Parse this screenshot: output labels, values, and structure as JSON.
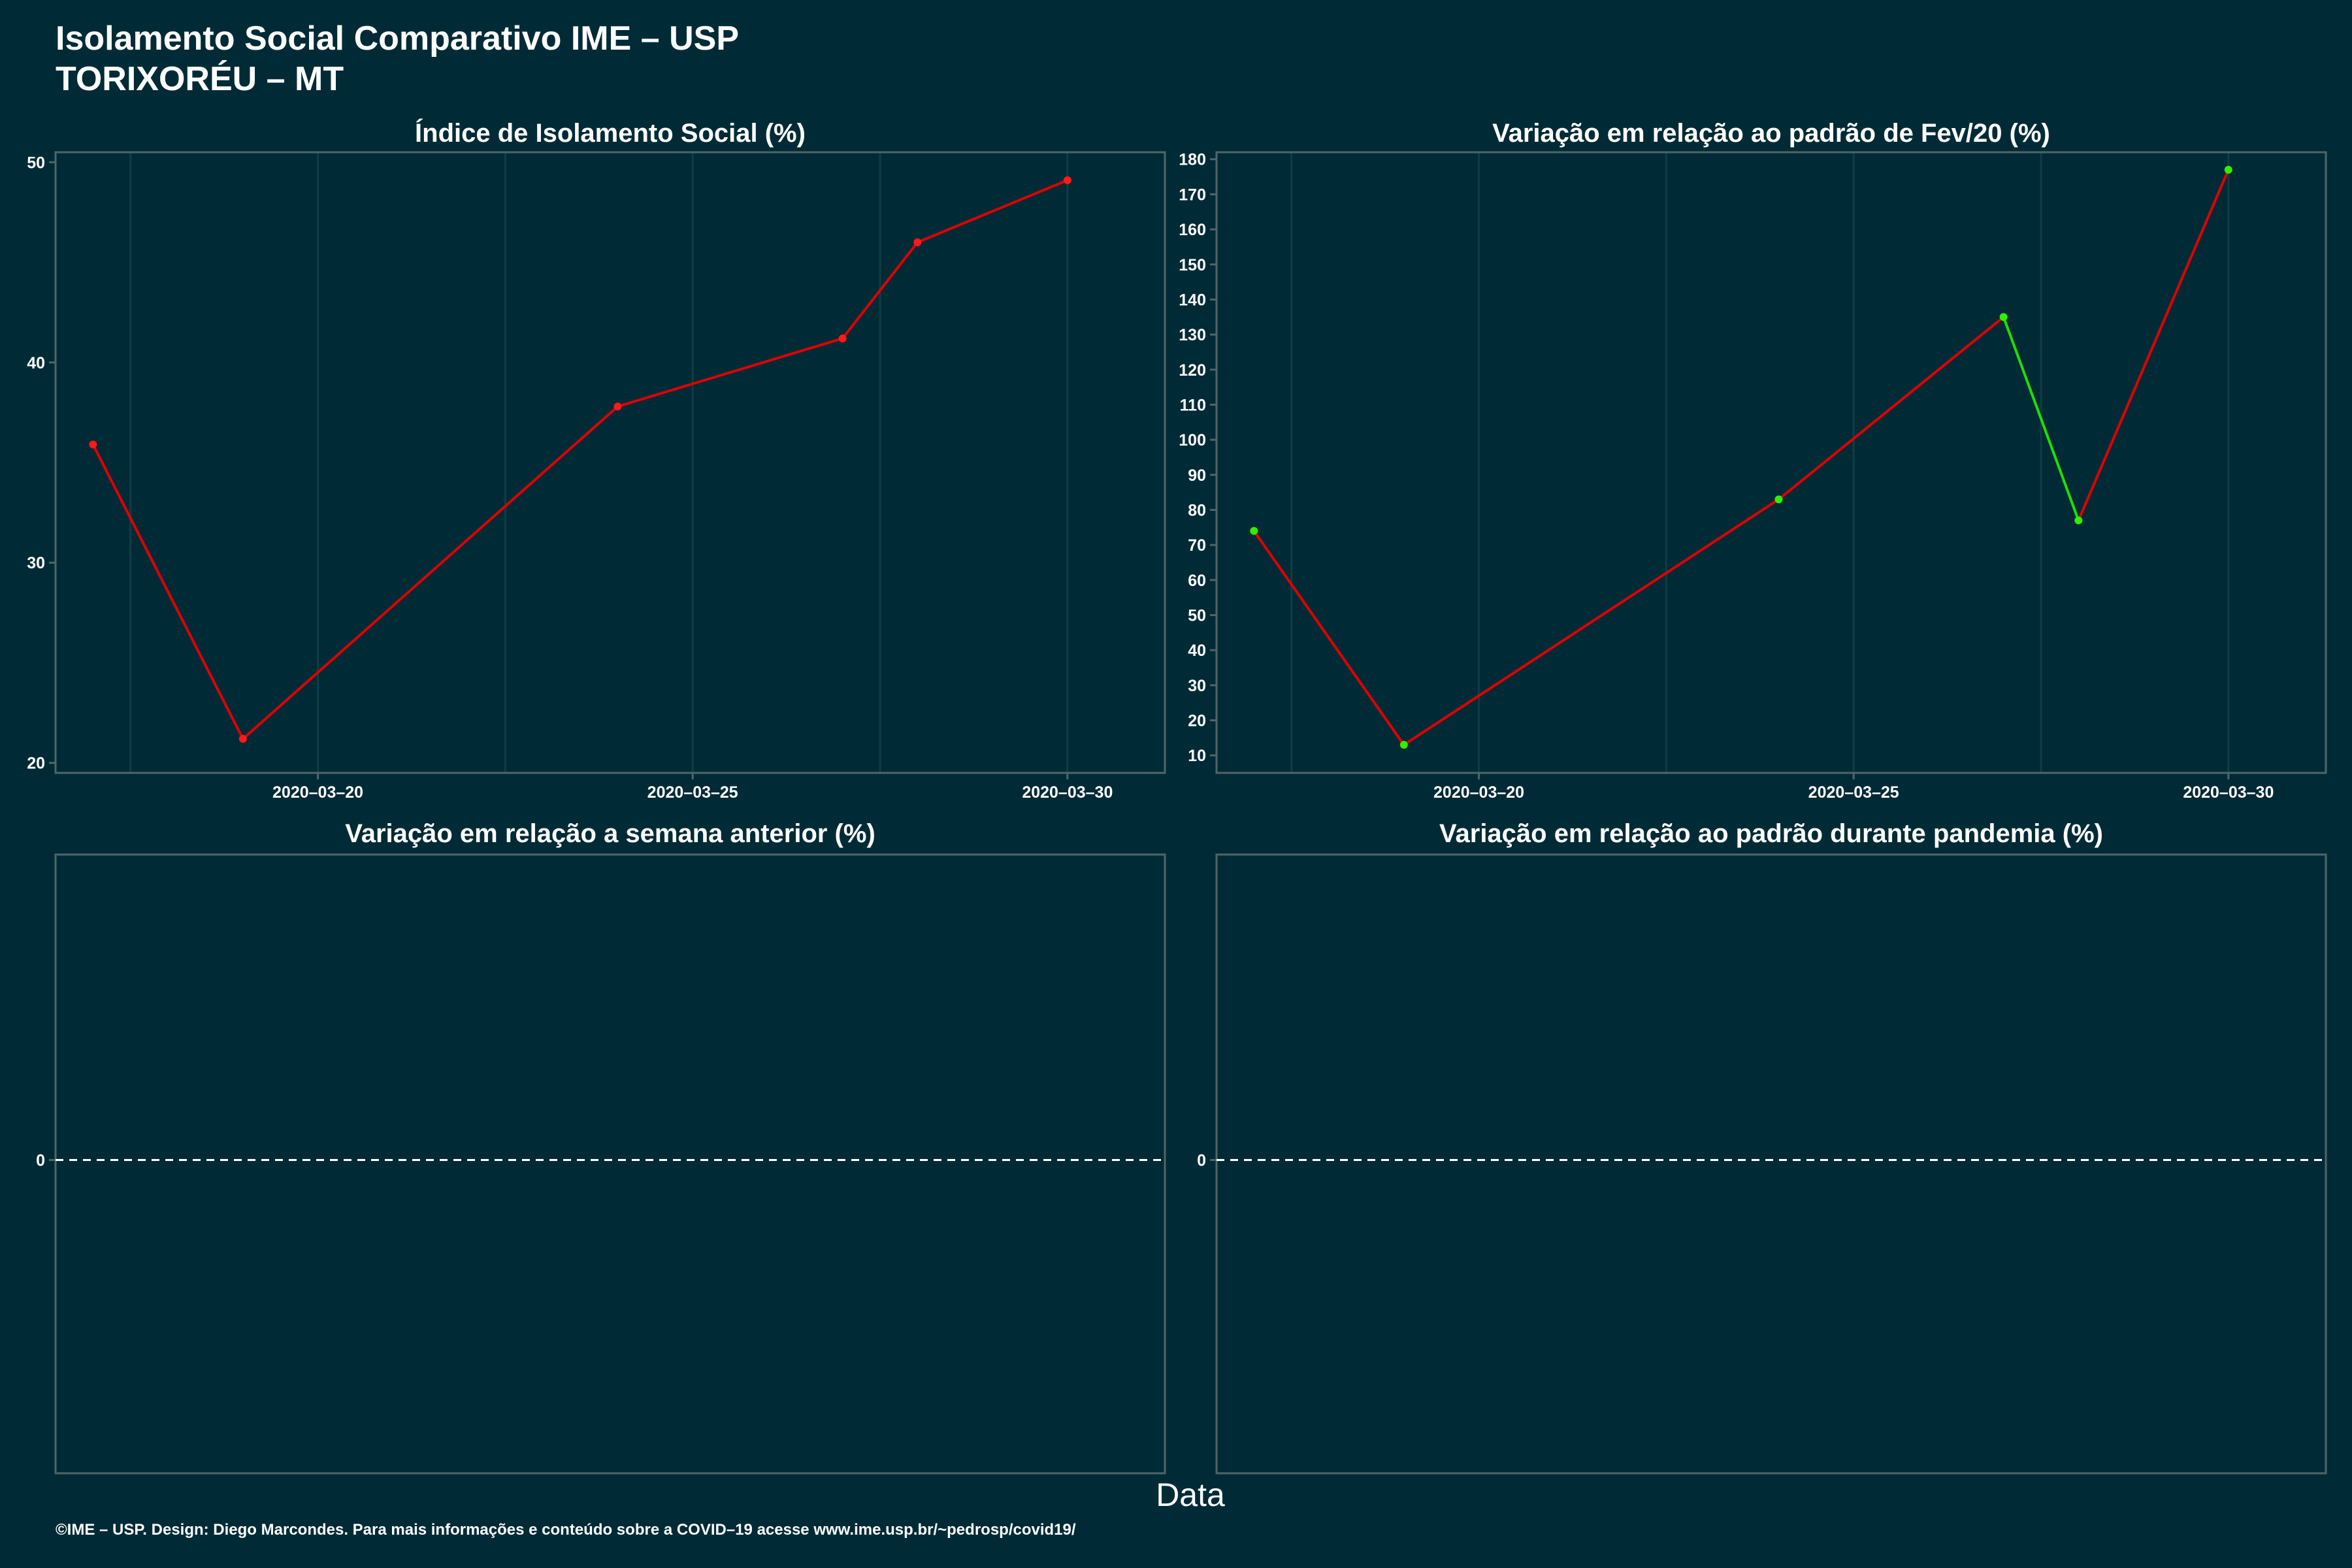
{
  "header": {
    "title_line1": "Isolamento Social Comparativo IME – USP",
    "title_line2": "TORIXORÉU – MT"
  },
  "x_axis_label": "Data",
  "footer": "©IME – USP. Design: Diego Marcondes. Para mais informações e conteúdo sobre a COVID–19 acesse www.ime.usp.br/~pedrosp/covid19/",
  "colors": {
    "background": "#002b36",
    "panel_border": "#4f6668",
    "grid": "#0f3d45",
    "increase": "#e00000",
    "decrease": "#22dd00",
    "point_red": "#ff1a1a",
    "point_green": "#33ee00",
    "zero_line": "#ffffff"
  },
  "chart_data": [
    {
      "type": "line",
      "title": "Índice de Isolamento Social (%)",
      "x": [
        "2020-03-17",
        "2020-03-19",
        "2020-03-24",
        "2020-03-27",
        "2020-03-28",
        "2020-03-30"
      ],
      "series": [
        {
          "values": [
            35.9,
            21.2,
            37.8,
            41.2,
            46.0,
            49.1
          ]
        }
      ],
      "segment_colors": [
        "red",
        "red",
        "red",
        "red",
        "red"
      ],
      "point_colors": [
        "red",
        "red",
        "red",
        "red",
        "red",
        "red"
      ],
      "xlim": [
        "2020-03-16.5",
        "2020-03-31.3"
      ],
      "xticks": [
        "2020-03-20",
        "2020-03-25",
        "2020-03-30"
      ],
      "ylim": [
        19.5,
        50.5
      ],
      "yticks": [
        20,
        30,
        40,
        50
      ],
      "grid": true
    },
    {
      "type": "line",
      "title": "Variação em relação ao padrão de Fev/20 (%)",
      "x": [
        "2020-03-17",
        "2020-03-19",
        "2020-03-24",
        "2020-03-27",
        "2020-03-28",
        "2020-03-30"
      ],
      "series": [
        {
          "values": [
            74,
            13,
            83,
            135,
            77,
            177
          ]
        }
      ],
      "segment_colors": [
        "red",
        "red",
        "red",
        "green",
        "red"
      ],
      "point_colors": [
        "green",
        "green",
        "green",
        "green",
        "green",
        "green"
      ],
      "xlim": [
        "2020-03-16.5",
        "2020-03-31.3"
      ],
      "xticks": [
        "2020-03-20",
        "2020-03-25",
        "2020-03-30"
      ],
      "ylim": [
        5,
        182
      ],
      "yticks": [
        10,
        20,
        30,
        40,
        50,
        60,
        70,
        80,
        90,
        100,
        110,
        120,
        130,
        140,
        150,
        160,
        170,
        180
      ],
      "grid": true
    },
    {
      "type": "line",
      "title": "Variação em relação a semana anterior (%)",
      "x": [],
      "series": [
        {
          "values": []
        }
      ],
      "yticks": [
        0
      ],
      "reference_line": 0,
      "grid": false
    },
    {
      "type": "line",
      "title": "Variação em relação ao padrão durante pandemia (%)",
      "x": [],
      "series": [
        {
          "values": []
        }
      ],
      "yticks": [
        0
      ],
      "reference_line": 0,
      "grid": false
    }
  ]
}
